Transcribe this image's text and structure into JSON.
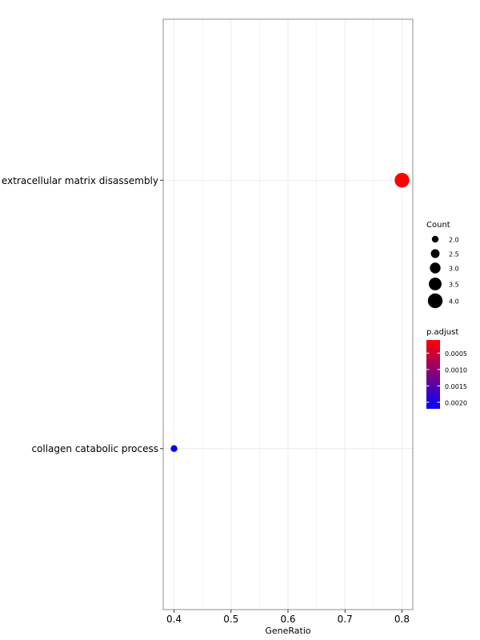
{
  "chart_data": {
    "type": "scatter",
    "title": "",
    "xlabel": "GeneRatio",
    "ylabel": "",
    "xlim": [
      0.381,
      0.819
    ],
    "x_ticks": [
      0.4,
      0.5,
      0.6,
      0.7,
      0.8
    ],
    "x_tick_labels": [
      "0.4",
      "0.5",
      "0.6",
      "0.7",
      "0.8"
    ],
    "x_minor_gridlines": [
      0.45,
      0.55,
      0.65,
      0.75
    ],
    "categories": [
      "extracellular matrix disassembly",
      "collagen catabolic process"
    ],
    "points": [
      {
        "term": "extracellular matrix disassembly",
        "x": 0.8,
        "count": 4,
        "p_adjust": 0.0001
      },
      {
        "term": "collagen catabolic process",
        "x": 0.4,
        "count": 2,
        "p_adjust": 0.0022
      }
    ],
    "grid": true,
    "legend_placement": "right",
    "size_legend": {
      "title": "Count",
      "values": [
        2.0,
        2.5,
        3.0,
        3.5,
        4.0
      ],
      "labels": [
        "2.0",
        "2.5",
        "3.0",
        "3.5",
        "4.0"
      ]
    },
    "color_legend": {
      "title": "p.adjust",
      "range": [
        0.0001,
        0.0022
      ],
      "ticks": [
        0.0005,
        0.001,
        0.0015,
        0.002
      ],
      "labels": [
        "0.0005",
        "0.0010",
        "0.0015",
        "0.0020"
      ],
      "low_color": "#ff0000",
      "high_color": "#0000ff"
    },
    "colors": {
      "panel_border": "#8c8c8c",
      "gridline": "#ebebeb",
      "text": "#000000"
    }
  }
}
